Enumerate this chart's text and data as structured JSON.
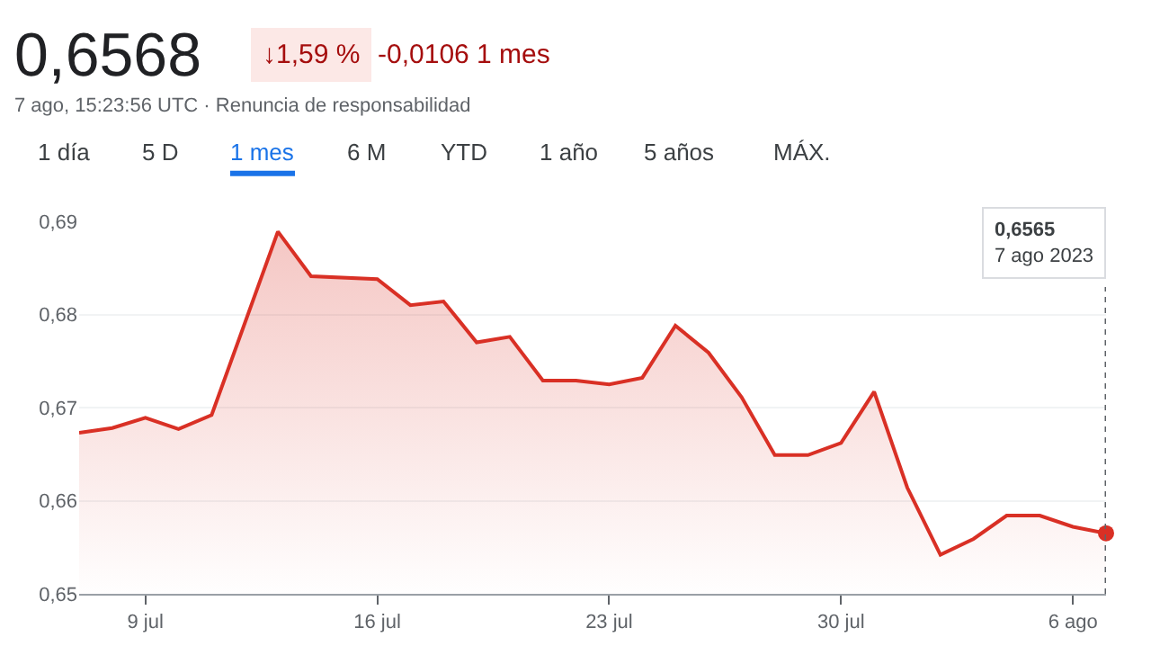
{
  "chart_data": {
    "type": "area",
    "title": "0,6568",
    "subtitle": "7 ago, 15:23:56 UTC · Renuncia de responsabilidad",
    "annotations": [
      "↓1,59 %",
      "-0,0106 1 mes",
      "1 día",
      "5 D",
      "1 mes",
      "6 M",
      "YTD",
      "1 año",
      "5 años",
      "MÁX.",
      "0,6565\n7 ago 2023"
    ],
    "series": [
      {
        "color": "#d93025",
        "x": [
          "2023-07-07",
          "2023-07-08",
          "2023-07-09",
          "2023-07-10",
          "2023-07-11",
          "2023-07-13",
          "2023-07-14",
          "2023-07-16",
          "2023-07-17",
          "2023-07-18",
          "2023-07-19",
          "2023-07-20",
          "2023-07-21",
          "2023-07-22",
          "2023-07-23",
          "2023-07-24",
          "2023-07-25",
          "2023-07-26",
          "2023-07-27",
          "2023-07-28",
          "2023-07-29",
          "2023-07-30",
          "2023-07-31",
          "2023-08-01",
          "2023-08-02",
          "2023-08-03",
          "2023-08-04",
          "2023-08-05",
          "2023-08-06",
          "2023-08-07"
        ],
        "values": [
          0.6673,
          0.6678,
          0.6689,
          0.6677,
          0.6692,
          0.6889,
          0.6841,
          0.6838,
          0.681,
          0.6814,
          0.677,
          0.6776,
          0.6729,
          0.6729,
          0.6725,
          0.6732,
          0.6788,
          0.6759,
          0.6711,
          0.6649,
          0.6649,
          0.6662,
          0.6717,
          0.6614,
          0.6542,
          0.6559,
          0.6584,
          0.6584,
          0.6572,
          0.6565
        ]
      }
    ],
    "xlim": [
      "2023-07-07",
      "2023-08-07"
    ],
    "xticks": [
      {
        "value": "2023-07-09",
        "label": "9 jul"
      },
      {
        "value": "2023-07-16",
        "label": "16 jul"
      },
      {
        "value": "2023-07-23",
        "label": "23 jul"
      },
      {
        "value": "2023-07-30",
        "label": "30 jul"
      },
      {
        "value": "2023-08-06",
        "label": "6 ago"
      }
    ],
    "ylim": [
      0.65,
      0.69
    ],
    "yticks": [
      {
        "value": 0.65,
        "label": "0,65"
      },
      {
        "value": 0.66,
        "label": "0,66"
      },
      {
        "value": 0.67,
        "label": "0,67"
      },
      {
        "value": 0.68,
        "label": "0,68"
      },
      {
        "value": 0.69,
        "label": "0,69"
      }
    ],
    "ref_lines": [
      {
        "axis": "x",
        "value": "2023-08-07",
        "color": "#5f6368",
        "line_style": "dotted"
      }
    ],
    "grid": "y"
  }
}
